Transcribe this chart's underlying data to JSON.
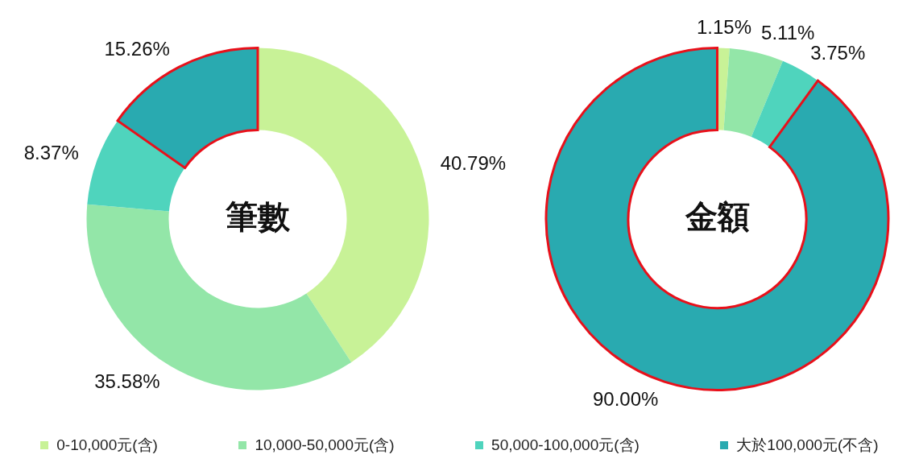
{
  "chart_data": [
    {
      "type": "donut",
      "title": "筆數",
      "categories": [
        "0-10,000元(含)",
        "10,000-50,000元(含)",
        "50,000-100,000元(含)",
        "大於100,000元(不含)"
      ],
      "values": [
        40.79,
        35.58,
        8.37,
        15.26
      ],
      "colors": [
        "#c8f297",
        "#93e6a8",
        "#4fd4bd",
        "#29aab0"
      ],
      "value_labels": [
        "40.79%",
        "35.58%",
        "8.37%",
        "15.26%"
      ],
      "legend": "bottom"
    },
    {
      "type": "donut",
      "title": "金額",
      "categories": [
        null,
        null,
        null,
        null
      ],
      "values": [
        1.15,
        5.11,
        3.75,
        90.0
      ],
      "colors": [
        "#c8f297",
        "#93e6a8",
        "#4fd4bd",
        "#29aab0"
      ],
      "value_labels": [
        "1.15%",
        "5.11%",
        "3.75%",
        "90.00%"
      ]
    }
  ]
}
